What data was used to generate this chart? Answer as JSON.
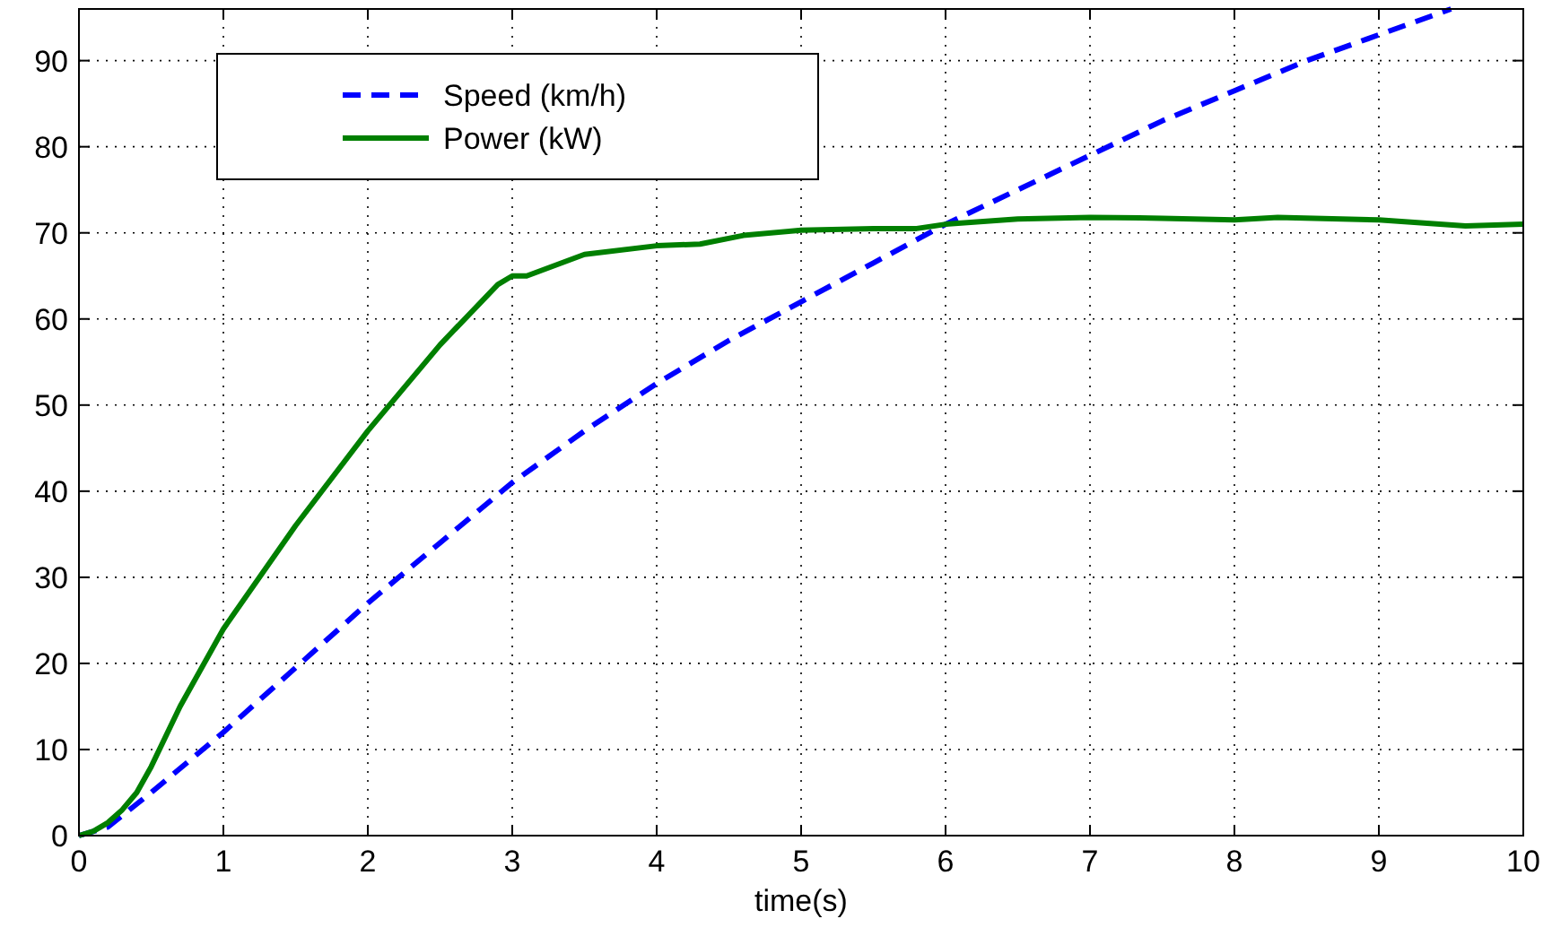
{
  "chart_data": {
    "type": "line",
    "xlabel": "time(s)",
    "xlim": [
      0,
      10
    ],
    "xticks": [
      0,
      1,
      2,
      3,
      4,
      5,
      6,
      7,
      8,
      9,
      10
    ],
    "ylim": [
      0,
      96
    ],
    "yticks": [
      0,
      10,
      20,
      30,
      40,
      50,
      60,
      70,
      80,
      90
    ],
    "grid": true,
    "legend": "top left",
    "series": [
      {
        "name": "Speed (km/h)",
        "color": "#0000ff",
        "line_style": "dashed",
        "x": [
          0,
          0.2,
          0.5,
          1,
          1.5,
          2,
          2.5,
          3,
          3.5,
          4,
          4.5,
          5,
          5.5,
          6,
          6.5,
          7,
          7.5,
          8,
          8.5,
          9,
          9.5
        ],
        "values": [
          0,
          1,
          5,
          12,
          19.5,
          27,
          34,
          41,
          47,
          52.5,
          57.5,
          62,
          66.5,
          71,
          75,
          79,
          83,
          86.5,
          90,
          93,
          96
        ]
      },
      {
        "name": "Power (kW)",
        "color": "#007f00",
        "line_style": "solid",
        "x": [
          0,
          0.1,
          0.2,
          0.3,
          0.4,
          0.5,
          0.7,
          1,
          1.5,
          2,
          2.5,
          2.9,
          3,
          3.1,
          3.5,
          4,
          4.3,
          4.6,
          5,
          5.5,
          5.8,
          6,
          6.5,
          7,
          7.5,
          8,
          8.3,
          9,
          9.6,
          10
        ],
        "values": [
          0,
          0.5,
          1.5,
          3,
          5,
          8,
          15,
          24,
          36,
          47,
          57,
          64,
          65,
          65,
          67.5,
          68.5,
          68.7,
          69.7,
          70.3,
          70.5,
          70.5,
          71,
          71.6,
          71.8,
          71.7,
          71.5,
          71.8,
          71.5,
          70.8,
          71
        ]
      }
    ]
  }
}
